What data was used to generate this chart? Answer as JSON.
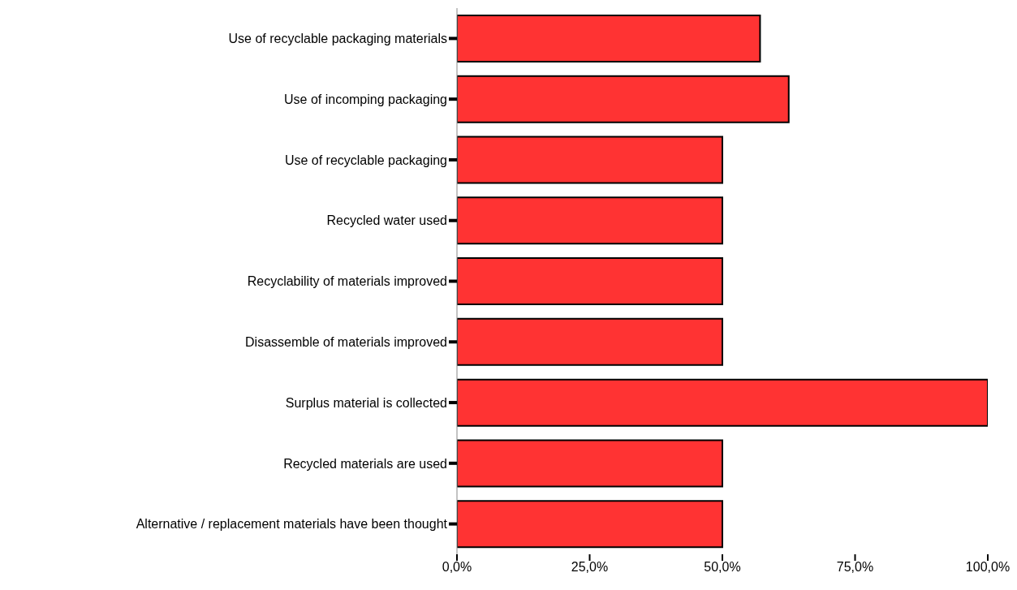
{
  "chart_data": {
    "type": "bar",
    "orientation": "horizontal",
    "categories": [
      "Use of recyclable packaging materials",
      "Use of incomping packaging",
      "Use of recyclable packaging",
      "Recycled water used",
      "Recyclability of materials improved",
      "Disassemble of materials improved",
      "Surplus material is collected",
      "Recycled materials are used",
      "Alternative / replacement materials have been thought"
    ],
    "values": [
      57.1,
      62.5,
      50,
      50,
      50,
      50,
      100,
      50,
      50
    ],
    "color": "#ff3333",
    "xlim": [
      0,
      100
    ],
    "xticks": [
      {
        "value": 0,
        "label": "0,0%"
      },
      {
        "value": 25,
        "label": "25,0%"
      },
      {
        "value": 50,
        "label": "50,0%"
      },
      {
        "value": 75,
        "label": "75,0%"
      },
      {
        "value": 100,
        "label": "100,0%"
      }
    ],
    "grid": false,
    "legend": false
  }
}
